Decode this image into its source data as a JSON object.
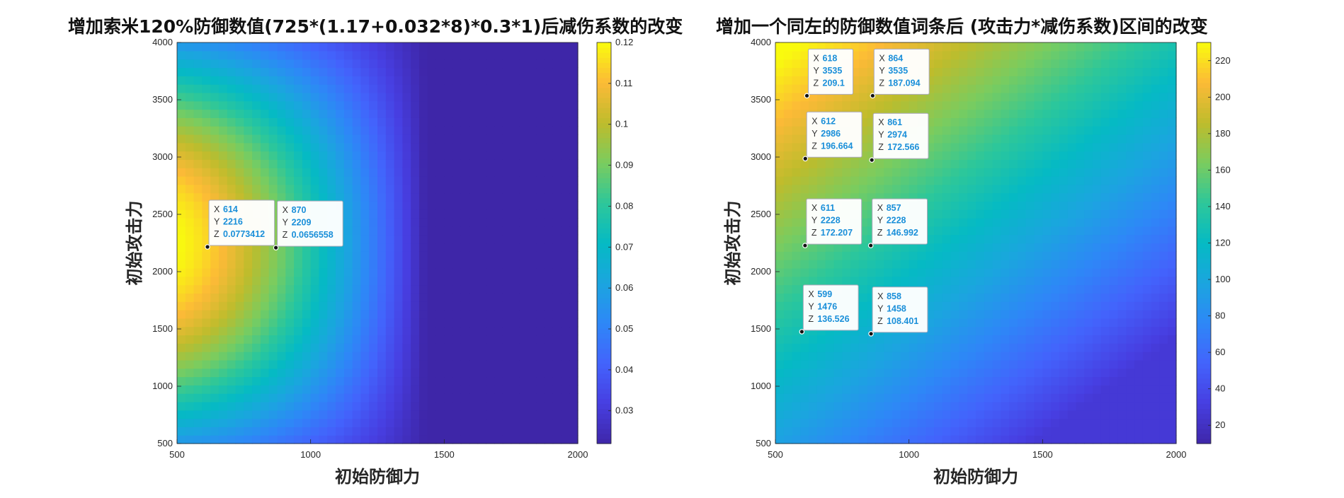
{
  "chart_data": [
    {
      "type": "heatmap",
      "title": "增加索米120%防御数值(725*(1.17+0.032*8)*0.3*1)后减伤系数的改变",
      "xlabel": "初始防御力",
      "ylabel": "初始攻击力",
      "xlim": [
        500,
        2000
      ],
      "ylim": [
        500,
        4000
      ],
      "x_ticks": [
        "500",
        "1000",
        "1500",
        "2000"
      ],
      "y_ticks": [
        "500",
        "1000",
        "1500",
        "2000",
        "2500",
        "3000",
        "3500",
        "4000"
      ],
      "colorbar": {
        "range": [
          0.022,
          0.12
        ],
        "ticks": [
          "0.03",
          "0.04",
          "0.05",
          "0.06",
          "0.07",
          "0.08",
          "0.09",
          "0.1",
          "0.11",
          "0.12"
        ],
        "colormap": "parula"
      },
      "datatips": [
        {
          "x": "614",
          "y": "2216",
          "z": "0.0773412"
        },
        {
          "x": "870",
          "y": "2209",
          "z": "0.0656558"
        }
      ]
    },
    {
      "type": "heatmap",
      "title": "增加一个同左的防御数值词条后 (攻击力*减伤系数)区间的改变",
      "xlabel": "初始防御力",
      "ylabel": "初始攻击力",
      "xlim": [
        500,
        2000
      ],
      "ylim": [
        500,
        4000
      ],
      "x_ticks": [
        "500",
        "1000",
        "1500",
        "2000"
      ],
      "y_ticks": [
        "500",
        "1000",
        "1500",
        "2000",
        "2500",
        "3000",
        "3500",
        "4000"
      ],
      "colorbar": {
        "range": [
          10,
          230
        ],
        "ticks": [
          "20",
          "40",
          "60",
          "80",
          "100",
          "120",
          "140",
          "160",
          "180",
          "200",
          "220"
        ],
        "colormap": "parula"
      },
      "datatips": [
        {
          "x": "618",
          "y": "3535",
          "z": "209.1"
        },
        {
          "x": "864",
          "y": "3535",
          "z": "187.094"
        },
        {
          "x": "612",
          "y": "2986",
          "z": "196.664"
        },
        {
          "x": "861",
          "y": "2974",
          "z": "172.566"
        },
        {
          "x": "611",
          "y": "2228",
          "z": "172.207"
        },
        {
          "x": "857",
          "y": "2228",
          "z": "146.992"
        },
        {
          "x": "599",
          "y": "1476",
          "z": "136.526"
        },
        {
          "x": "858",
          "y": "1458",
          "z": "108.401"
        }
      ]
    }
  ],
  "datatip_labels": {
    "x": "X",
    "y": "Y",
    "z": "Z"
  }
}
